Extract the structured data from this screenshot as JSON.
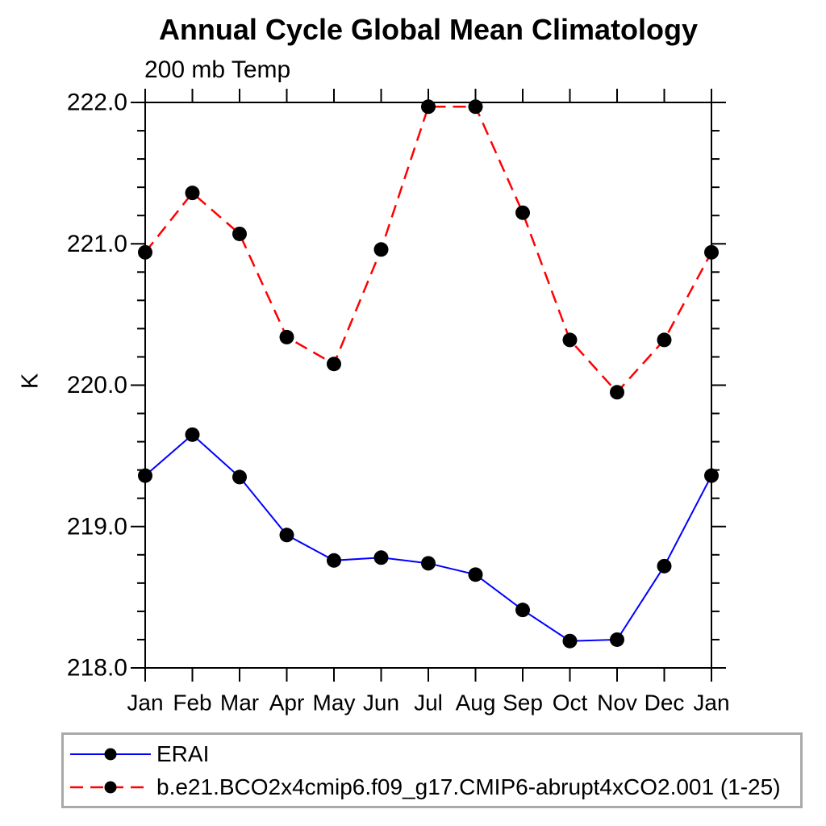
{
  "title": "Annual Cycle Global Mean Climatology",
  "subtitle": "200 mb Temp",
  "ylabel": "K",
  "colors": {
    "erai_line": "#0000ff",
    "model_line": "#ff0000",
    "marker": "#000000",
    "axis": "#000000",
    "legend_border": "#a9a9a9",
    "background": "#ffffff"
  },
  "chart_data": {
    "type": "line",
    "categories": [
      "Jan",
      "Feb",
      "Mar",
      "Apr",
      "May",
      "Jun",
      "Jul",
      "Aug",
      "Sep",
      "Oct",
      "Nov",
      "Dec",
      "Jan"
    ],
    "series": [
      {
        "name": "ERAI",
        "color": "#0000ff",
        "line_style": "solid",
        "line_width": 2,
        "marker": "circle",
        "marker_color": "#000000",
        "values": [
          219.36,
          219.65,
          219.35,
          218.94,
          218.76,
          218.78,
          218.74,
          218.66,
          218.41,
          218.19,
          218.2,
          218.72,
          219.36
        ]
      },
      {
        "name": "b.e21.BCO2x4cmip6.f09_g17.CMIP6-abrupt4xCO2.001 (1-25)",
        "color": "#ff0000",
        "line_style": "dashed",
        "line_width": 2.5,
        "marker": "circle",
        "marker_color": "#000000",
        "values": [
          220.94,
          221.36,
          221.07,
          220.34,
          220.15,
          220.96,
          221.97,
          221.97,
          221.22,
          220.32,
          219.95,
          220.32,
          220.94
        ]
      }
    ],
    "title": "Annual Cycle Global Mean Climatology",
    "subtitle": "200 mb Temp",
    "xlabel": "",
    "ylabel": "K",
    "ylim": [
      218.0,
      222.0
    ],
    "ytick_labels": [
      "218.0",
      "219.0",
      "220.0",
      "221.0",
      "222.0"
    ],
    "ytick_major_step": 1.0,
    "ytick_minor_step": 0.2,
    "grid": false,
    "legend_position": "bottom-left"
  }
}
